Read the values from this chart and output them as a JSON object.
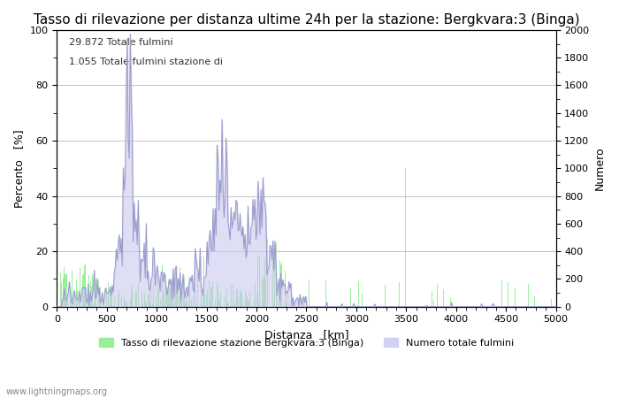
{
  "title": "Tasso di rilevazione per distanza ultime 24h per la stazione: Bergkvara:3 (Binga)",
  "xlabel": "Distanza   [km]",
  "ylabel_left": "Percento   [%]",
  "ylabel_right": "Numero",
  "annotation_line1": "29.872 Totale fulmini",
  "annotation_line2": "1.055 Totale fulmini stazione di",
  "legend_green": "Tasso di rilevazione stazione Bergkvara:3 (Binga)",
  "legend_blue": "Numero totale fulmini",
  "watermark": "www.lightningmaps.org",
  "xlim": [
    0,
    5000
  ],
  "ylim_left": [
    0,
    100
  ],
  "ylim_right": [
    0,
    2000
  ],
  "yticks_left": [
    0,
    20,
    40,
    60,
    80,
    100
  ],
  "yticks_right": [
    0,
    200,
    400,
    600,
    800,
    1000,
    1200,
    1400,
    1600,
    1800,
    2000
  ],
  "xticks": [
    0,
    500,
    1000,
    1500,
    2000,
    2500,
    3000,
    3500,
    4000,
    4500,
    5000
  ],
  "bar_color": "#90EE90",
  "line_color": "#9999cc",
  "line_color_fill": "#c8c8ee",
  "background_color": "#ffffff",
  "grid_color": "#aaaaaa",
  "title_fontsize": 11,
  "axis_fontsize": 9,
  "tick_fontsize": 8,
  "bin_width": 10
}
